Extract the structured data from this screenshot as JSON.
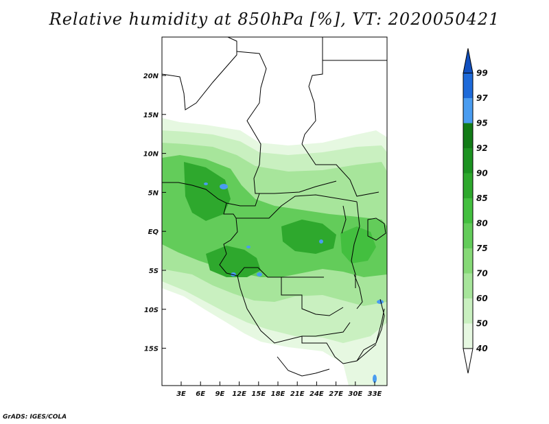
{
  "title": "Relative humidity at 850hPa [%], VT: 2020050421",
  "credit": "GrADS: IGES/COLA",
  "map": {
    "lat_labels": [
      "20N",
      "15N",
      "10N",
      "5N",
      "EQ",
      "5S",
      "10S",
      "15S"
    ],
    "lon_labels": [
      "3E",
      "6E",
      "9E",
      "12E",
      "15E",
      "18E",
      "21E",
      "24E",
      "27E",
      "30E",
      "33E"
    ]
  },
  "colorbar": {
    "levels": [
      "40",
      "50",
      "60",
      "70",
      "75",
      "80",
      "85",
      "90",
      "92",
      "95",
      "97",
      "99"
    ],
    "colors": [
      "#ffffff",
      "#e6f8e1",
      "#c9f0c0",
      "#a7e59b",
      "#86d977",
      "#63cc5a",
      "#43bf3f",
      "#2ea82d",
      "#1c9221",
      "#127b17",
      "#4a9cf0",
      "#1e6ad9",
      "#1150bf"
    ]
  },
  "colors": {
    "land_border": "#000000",
    "humid_low": "#e6f8e1",
    "humid_mid": "#86d977",
    "humid_high": "#2ea82d",
    "saturated": "#4a9cf0"
  }
}
